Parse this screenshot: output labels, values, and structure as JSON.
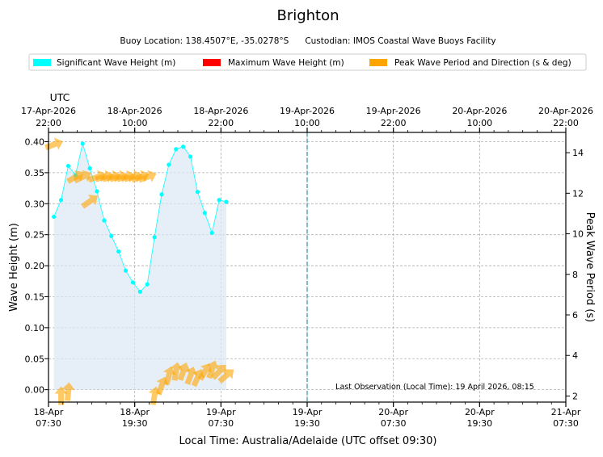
{
  "chart_data": {
    "type": "line",
    "title": "Brighton",
    "subtitle": "Buoy Location: 138.4507°E, -35.0278°S      Custodian: IMOS Coastal Wave Buoys Facility",
    "legend": {
      "placement": "top",
      "entries": [
        {
          "label": "Significant Wave Height (m)",
          "color": "#00ffff"
        },
        {
          "label": "Maximum Wave Height (m)",
          "color": "#ff0000"
        },
        {
          "label": "Peak Wave Period and Direction (s & deg)",
          "color": "#ffa500"
        }
      ]
    },
    "xlabel": "Local Time: Australia/Adelaide (UTC offset 09:30)",
    "ylabel": "Wave Height (m)",
    "y2label": "Peak Wave Period (s)",
    "top_axis_label": "UTC",
    "x_range_hours": [
      0,
      72
    ],
    "ylim": [
      -0.02,
      0.415
    ],
    "y2lim": [
      1.7,
      15.0
    ],
    "yticks": [
      0.0,
      0.05,
      0.1,
      0.15,
      0.2,
      0.25,
      0.3,
      0.35,
      0.4
    ],
    "y2ticks": [
      2,
      4,
      6,
      8,
      10,
      12,
      14
    ],
    "bottom_ticks": [
      {
        "h": 0,
        "date": "18-Apr",
        "time": "07:30"
      },
      {
        "h": 12,
        "date": "18-Apr",
        "time": "19:30"
      },
      {
        "h": 24,
        "date": "19-Apr",
        "time": "07:30"
      },
      {
        "h": 36,
        "date": "19-Apr",
        "time": "19:30"
      },
      {
        "h": 48,
        "date": "20-Apr",
        "time": "07:30"
      },
      {
        "h": 60,
        "date": "20-Apr",
        "time": "19:30"
      },
      {
        "h": 72,
        "date": "21-Apr",
        "time": "07:30"
      }
    ],
    "top_ticks": [
      {
        "h": 0,
        "date": "17-Apr-2026",
        "time": "22:00"
      },
      {
        "h": 12,
        "date": "18-Apr-2026",
        "time": "10:00"
      },
      {
        "h": 24,
        "date": "18-Apr-2026",
        "time": "22:00"
      },
      {
        "h": 36,
        "date": "19-Apr-2026",
        "time": "10:00"
      },
      {
        "h": 48,
        "date": "19-Apr-2026",
        "time": "22:00"
      },
      {
        "h": 60,
        "date": "20-Apr-2026",
        "time": "10:00"
      },
      {
        "h": 72,
        "date": "20-Apr-2026",
        "time": "22:00"
      }
    ],
    "grid": true,
    "current_time_line_h": 36,
    "last_observation_text": "Last Observation (Local Time): 19 April 2026, 08:15",
    "series": [
      {
        "name": "Significant Wave Height (m)",
        "color": "#00ffff",
        "x_hours": [
          0.75,
          1.75,
          2.75,
          3.75,
          4.75,
          5.75,
          6.75,
          7.75,
          8.75,
          9.75,
          10.75,
          11.75,
          12.75,
          13.75,
          14.75,
          15.75,
          16.75,
          17.75,
          18.75,
          19.75,
          20.75,
          21.75,
          22.75,
          23.75,
          24.75
        ],
        "values": [
          0.279,
          0.306,
          0.361,
          0.346,
          0.397,
          0.357,
          0.32,
          0.273,
          0.248,
          0.223,
          0.192,
          0.173,
          0.158,
          0.17,
          0.246,
          0.315,
          0.363,
          0.388,
          0.392,
          0.376,
          0.319,
          0.285,
          0.253,
          0.306,
          0.303
        ]
      },
      {
        "name": "Peak Wave Period and Direction (s & deg)",
        "color": "#ffa500",
        "x_hours": [
          0.75,
          1.75,
          2.75,
          3.75,
          4.75,
          5.75,
          6.75,
          7.75,
          8.75,
          9.75,
          10.75,
          11.75,
          12.75,
          13.75,
          14.75,
          15.75,
          16.75,
          17.75,
          18.75,
          19.75,
          20.75,
          21.75,
          22.75,
          23.75,
          24.75
        ],
        "period_s": [
          14.4,
          2.0,
          2.2,
          12.8,
          12.8,
          11.6,
          12.8,
          12.8,
          12.8,
          12.8,
          12.8,
          12.8,
          12.8,
          12.8,
          2.0,
          2.5,
          3.0,
          3.2,
          3.2,
          3.0,
          2.9,
          3.2,
          3.3,
          3.2,
          3.0
        ],
        "direction_deg": [
          250,
          180,
          185,
          240,
          245,
          235,
          250,
          255,
          255,
          255,
          255,
          255,
          250,
          250,
          190,
          200,
          195,
          190,
          200,
          200,
          205,
          210,
          200,
          225,
          230
        ]
      }
    ]
  }
}
